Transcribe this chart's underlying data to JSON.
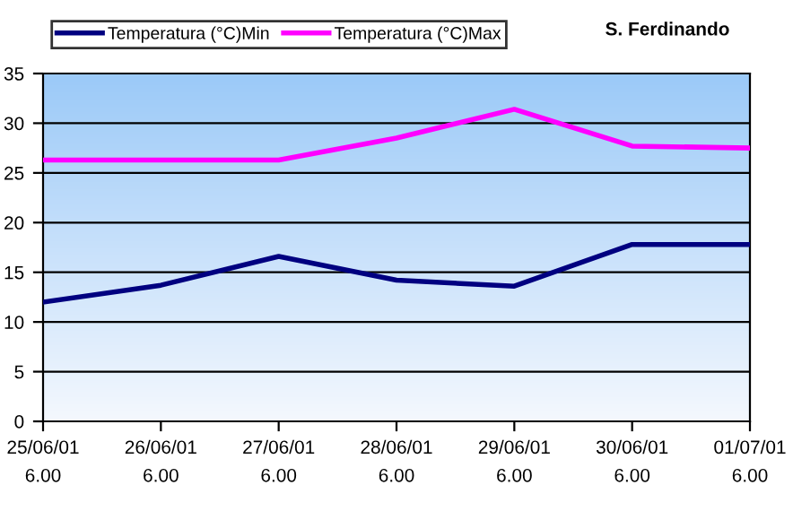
{
  "chart_data": {
    "type": "line",
    "title": "S. Ferdinando",
    "categories": [
      "25/06/01\n6.00",
      "26/06/01\n6.00",
      "27/06/01\n6.00",
      "28/06/01\n6.00",
      "29/06/01\n6.00",
      "30/06/01\n6.00",
      "01/07/01\n6.00"
    ],
    "series": [
      {
        "name": "Temperatura (°C)Min",
        "color": "#000080",
        "values": [
          12.0,
          13.7,
          16.6,
          14.2,
          13.6,
          17.8,
          17.8
        ]
      },
      {
        "name": "Temperatura (°C)Max",
        "color": "#ff00ff",
        "values": [
          26.3,
          26.3,
          26.3,
          28.5,
          31.4,
          27.7,
          27.5
        ]
      }
    ],
    "ylim": [
      0,
      35
    ],
    "yticks": [
      0,
      5,
      10,
      15,
      20,
      25,
      30,
      35
    ],
    "grid": "y",
    "legend": "top left",
    "marker": "none",
    "line_style": "solid"
  }
}
